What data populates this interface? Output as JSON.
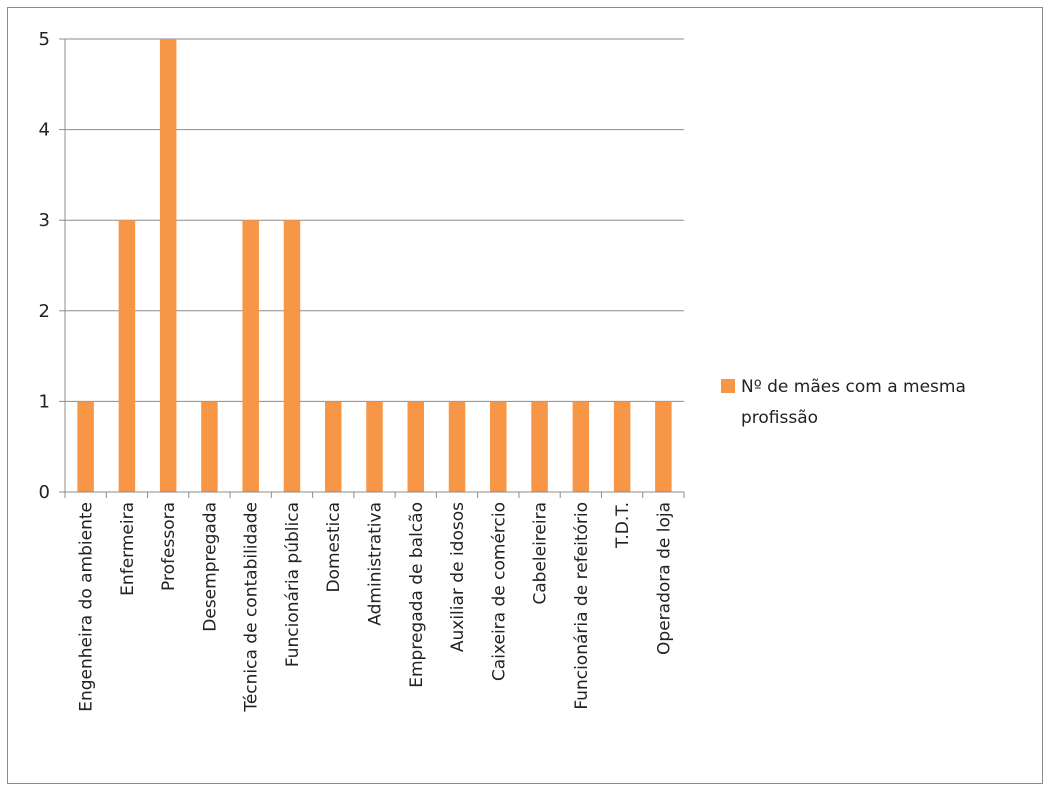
{
  "chart_data": {
    "type": "bar",
    "categories": [
      "Engenheira do ambiente",
      "Enfermeira",
      "Professora",
      "Desempregada",
      "Técnica de contabilidade",
      "Funcionária pública",
      "Domestica",
      "Administrativa",
      "Empregada de balcão",
      "Auxiliar de idosos",
      "Caixeira de comércio",
      "Cabeleireira",
      "Funcionária de refeitório",
      "T.D.T.",
      "Operadora de loja"
    ],
    "series": [
      {
        "name": "Nº de mães com a mesma profissão",
        "values": [
          1,
          3,
          5,
          1,
          3,
          3,
          1,
          1,
          1,
          1,
          1,
          1,
          1,
          1,
          1
        ],
        "color": "#f79646"
      }
    ],
    "ylim": [
      0,
      5
    ],
    "yticks": [
      0,
      1,
      2,
      3,
      4,
      5
    ],
    "grid": true,
    "legend": "right",
    "legend_lines": [
      "Nº de mães com a mesma",
      "profissão"
    ]
  }
}
